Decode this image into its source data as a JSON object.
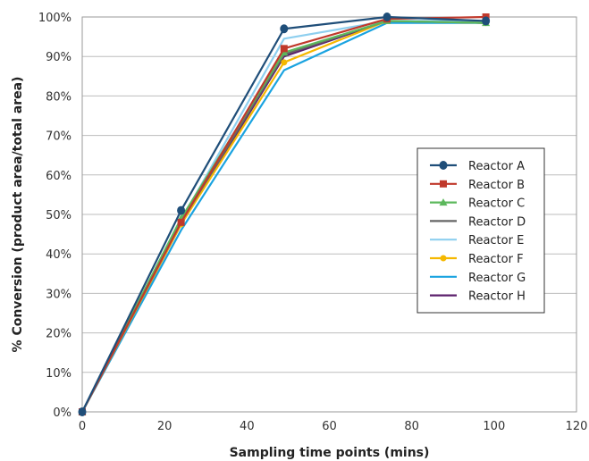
{
  "chart_data": {
    "type": "line",
    "title": "",
    "xlabel": "Sampling time points (mins)",
    "ylabel": "% Conversion (product area/total area)",
    "xlim": [
      0,
      120
    ],
    "ylim": [
      0,
      100
    ],
    "xticks": [
      0,
      20,
      40,
      60,
      80,
      100,
      120
    ],
    "yticks": [
      0,
      10,
      20,
      30,
      40,
      50,
      60,
      70,
      80,
      90,
      100
    ],
    "ytick_suffix": "%",
    "grid": "horizontal",
    "legend_position": "right",
    "series": [
      {
        "name": "Reactor A",
        "color": "#1f4e79",
        "marker": "circle",
        "x": [
          0,
          24,
          49,
          74,
          98
        ],
        "y": [
          0,
          51,
          97,
          100,
          99
        ]
      },
      {
        "name": "Reactor B",
        "color": "#c0392b",
        "marker": "square",
        "x": [
          0,
          24,
          49,
          74,
          98
        ],
        "y": [
          0,
          48,
          92,
          99.5,
          100
        ]
      },
      {
        "name": "Reactor C",
        "color": "#5cb85c",
        "marker": "triangle",
        "x": [
          0,
          24,
          49,
          74,
          98
        ],
        "y": [
          0,
          49,
          91,
          99,
          98.5
        ]
      },
      {
        "name": "Reactor D",
        "color": "#666666",
        "marker": "none",
        "x": [
          0,
          24,
          49,
          74,
          98
        ],
        "y": [
          0,
          48,
          90.5,
          99,
          98.5
        ]
      },
      {
        "name": "Reactor E",
        "color": "#8ecfef",
        "marker": "none",
        "x": [
          0,
          24,
          49,
          74,
          98
        ],
        "y": [
          0,
          48.5,
          94.5,
          99,
          99
        ]
      },
      {
        "name": "Reactor F",
        "color": "#f5b800",
        "marker": "circle-small",
        "x": [
          0,
          24,
          49,
          74,
          98
        ],
        "y": [
          0,
          47.5,
          88.5,
          99,
          98.5
        ]
      },
      {
        "name": "Reactor G",
        "color": "#1aa3e0",
        "marker": "none",
        "x": [
          0,
          24,
          49,
          74,
          98
        ],
        "y": [
          0,
          46,
          86.5,
          98.5,
          98.5
        ]
      },
      {
        "name": "Reactor H",
        "color": "#5b1f6b",
        "marker": "none",
        "x": [
          0,
          24,
          49,
          74,
          98
        ],
        "y": [
          0,
          47.5,
          90,
          99,
          98.5
        ]
      }
    ]
  }
}
